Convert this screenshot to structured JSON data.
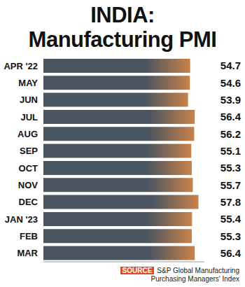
{
  "chart_data": {
    "type": "bar",
    "orientation": "horizontal",
    "title": "INDIA: Manufacturing PMI",
    "categories": [
      "APR '22",
      "MAY",
      "JUN",
      "JUL",
      "AUG",
      "SEP",
      "OCT",
      "NOV",
      "DEC",
      "JAN '23",
      "FEB",
      "MAR"
    ],
    "values": [
      54.7,
      54.6,
      53.9,
      56.4,
      56.2,
      55.1,
      55.3,
      55.7,
      57.8,
      55.4,
      55.3,
      56.4
    ],
    "color": "#4a5560",
    "xlim": [
      0,
      60
    ],
    "xticks": [
      0,
      20,
      40,
      60
    ],
    "grid": false,
    "data_labels": true,
    "tick_labels": "y",
    "source_label": "SOURCE",
    "source": "S&P Global Manufacturing Purchasing Managers' Index"
  }
}
